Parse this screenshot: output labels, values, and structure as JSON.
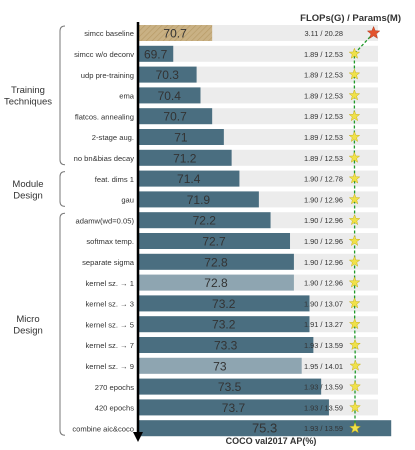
{
  "chart_data": {
    "type": "bar",
    "orientation": "horizontal",
    "title": "FLOPs(G) / Params(M)",
    "xlabel": "COCO val2017 AP(%)",
    "groups": [
      {
        "label": "Training\nTechniques",
        "start": 0,
        "end": 6
      },
      {
        "label": "Module\nDesign",
        "start": 7,
        "end": 8
      },
      {
        "label": "Micro\nDesign",
        "start": 9,
        "end": 19
      }
    ],
    "rows": [
      {
        "name": "simcc baseline",
        "ap": "70.7",
        "cost": "3.11 / 20.28",
        "flops": 3.11,
        "style": "baseline",
        "marker": "red-star"
      },
      {
        "name": "simcc w/o deconv",
        "ap": "69.7",
        "cost": "1.89 / 12.53",
        "flops": 1.89,
        "style": "normal",
        "marker": "star"
      },
      {
        "name": "udp pre-training",
        "ap": "70.3",
        "cost": "1.89 / 12.53",
        "flops": 1.89,
        "style": "normal",
        "marker": "star"
      },
      {
        "name": "ema",
        "ap": "70.4",
        "cost": "1.89 / 12.53",
        "flops": 1.89,
        "style": "normal",
        "marker": "star"
      },
      {
        "name": "flatcos. annealing",
        "ap": "70.7",
        "cost": "1.89 / 12.53",
        "flops": 1.89,
        "style": "normal",
        "marker": "star"
      },
      {
        "name": "2-stage aug.",
        "ap": "71",
        "cost": "1.89 / 12.53",
        "flops": 1.89,
        "style": "normal",
        "marker": "star"
      },
      {
        "name": "no bn&bias decay",
        "ap": "71.2",
        "cost": "1.89 / 12.53",
        "flops": 1.89,
        "style": "normal",
        "marker": "star"
      },
      {
        "name": "feat. dims 1",
        "ap": "71.4",
        "cost": "1.90 / 12.78",
        "flops": 1.9,
        "style": "normal",
        "marker": "star"
      },
      {
        "name": "gau",
        "ap": "71.9",
        "cost": "1.90 / 12.96",
        "flops": 1.9,
        "style": "normal",
        "marker": "star"
      },
      {
        "name": "adamw(wd=0.05)",
        "ap": "72.2",
        "cost": "1.90 / 12.96",
        "flops": 1.9,
        "style": "normal",
        "marker": "star"
      },
      {
        "name": "softmax temp.",
        "ap": "72.7",
        "cost": "1.90 / 12.96",
        "flops": 1.9,
        "style": "normal",
        "marker": "star"
      },
      {
        "name": "separate sigma",
        "ap": "72.8",
        "cost": "1.90 / 12.96",
        "flops": 1.9,
        "style": "normal",
        "marker": "star"
      },
      {
        "name": "kernel sz. → 1",
        "ap": "72.8",
        "cost": "1.90 / 12.96",
        "flops": 1.9,
        "style": "faded",
        "marker": "star"
      },
      {
        "name": "kernel sz. → 3",
        "ap": "73.2",
        "cost": "1.90 / 13.07",
        "flops": 1.9,
        "style": "normal",
        "marker": "star"
      },
      {
        "name": "kernel sz. → 5",
        "ap": "73.2",
        "cost": "1.91 / 13.27",
        "flops": 1.91,
        "style": "normal",
        "marker": "star"
      },
      {
        "name": "kernel sz. → 7",
        "ap": "73.3",
        "cost": "1.93 / 13.59",
        "flops": 1.93,
        "style": "normal",
        "marker": "star"
      },
      {
        "name": "kernel sz. → 9",
        "ap": "73",
        "cost": "1.95 / 14.01",
        "flops": 1.95,
        "style": "faded",
        "marker": "star"
      },
      {
        "name": "270 epochs",
        "ap": "73.5",
        "cost": "1.93 / 13.59",
        "flops": 1.93,
        "style": "normal",
        "marker": "star"
      },
      {
        "name": "420 epochs",
        "ap": "73.7",
        "cost": "1.93 / 13.59",
        "flops": 1.93,
        "style": "normal",
        "marker": "star"
      },
      {
        "name": "combine aic&coco",
        "ap": "75.3",
        "cost": "1.93 / 13.59",
        "flops": 1.93,
        "style": "normal",
        "marker": "star"
      }
    ],
    "colors": {
      "bar": "#4a6e80",
      "bar_faded": "#8ea5b1",
      "baseline": "#c9b184",
      "track": "#ececec",
      "line": "#1f9a2a",
      "star": "#f0e14a",
      "star_edge": "#c7b21a",
      "red_star": "#e2532e",
      "title": "#c0392b",
      "axis": "#000000"
    }
  }
}
